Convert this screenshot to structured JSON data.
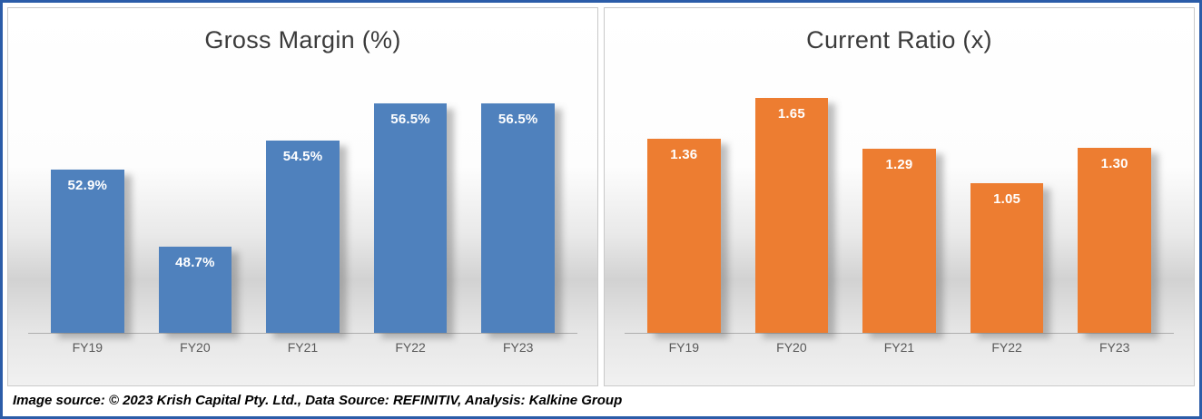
{
  "caption": "Image source: © 2023 Krish Capital Pty. Ltd., Data Source: REFINITIV, Analysis: Kalkine Group",
  "colors": {
    "frame_border": "#2b5ca8",
    "gross_margin_bar": "#4f81bd",
    "current_ratio_bar": "#ed7d31",
    "value_label": "#ffffff",
    "category_label": "#595959",
    "title_text": "#3b3b3b"
  },
  "chart_data": [
    {
      "type": "bar",
      "title": "Gross Margin (%)",
      "categories": [
        "FY19",
        "FY20",
        "FY21",
        "FY22",
        "FY23"
      ],
      "values": [
        52.9,
        48.7,
        54.5,
        56.5,
        56.5
      ],
      "labels": [
        "52.9%",
        "48.7%",
        "54.5%",
        "56.5%",
        "56.5%"
      ],
      "bar_color": "#4f81bd",
      "label_color": "#ffffff",
      "ylim": [
        44,
        58
      ],
      "xlabel": "",
      "ylabel": "",
      "grid": false,
      "legend": "none"
    },
    {
      "type": "bar",
      "title": "Current Ratio (x)",
      "categories": [
        "FY19",
        "FY20",
        "FY21",
        "FY22",
        "FY23"
      ],
      "values": [
        1.36,
        1.65,
        1.29,
        1.05,
        1.3
      ],
      "labels": [
        "1.36",
        "1.65",
        "1.29",
        "1.05",
        "1.30"
      ],
      "bar_color": "#ed7d31",
      "label_color": "#ffffff",
      "ylim": [
        0,
        1.8
      ],
      "xlabel": "",
      "ylabel": "",
      "grid": false,
      "legend": "none"
    }
  ]
}
